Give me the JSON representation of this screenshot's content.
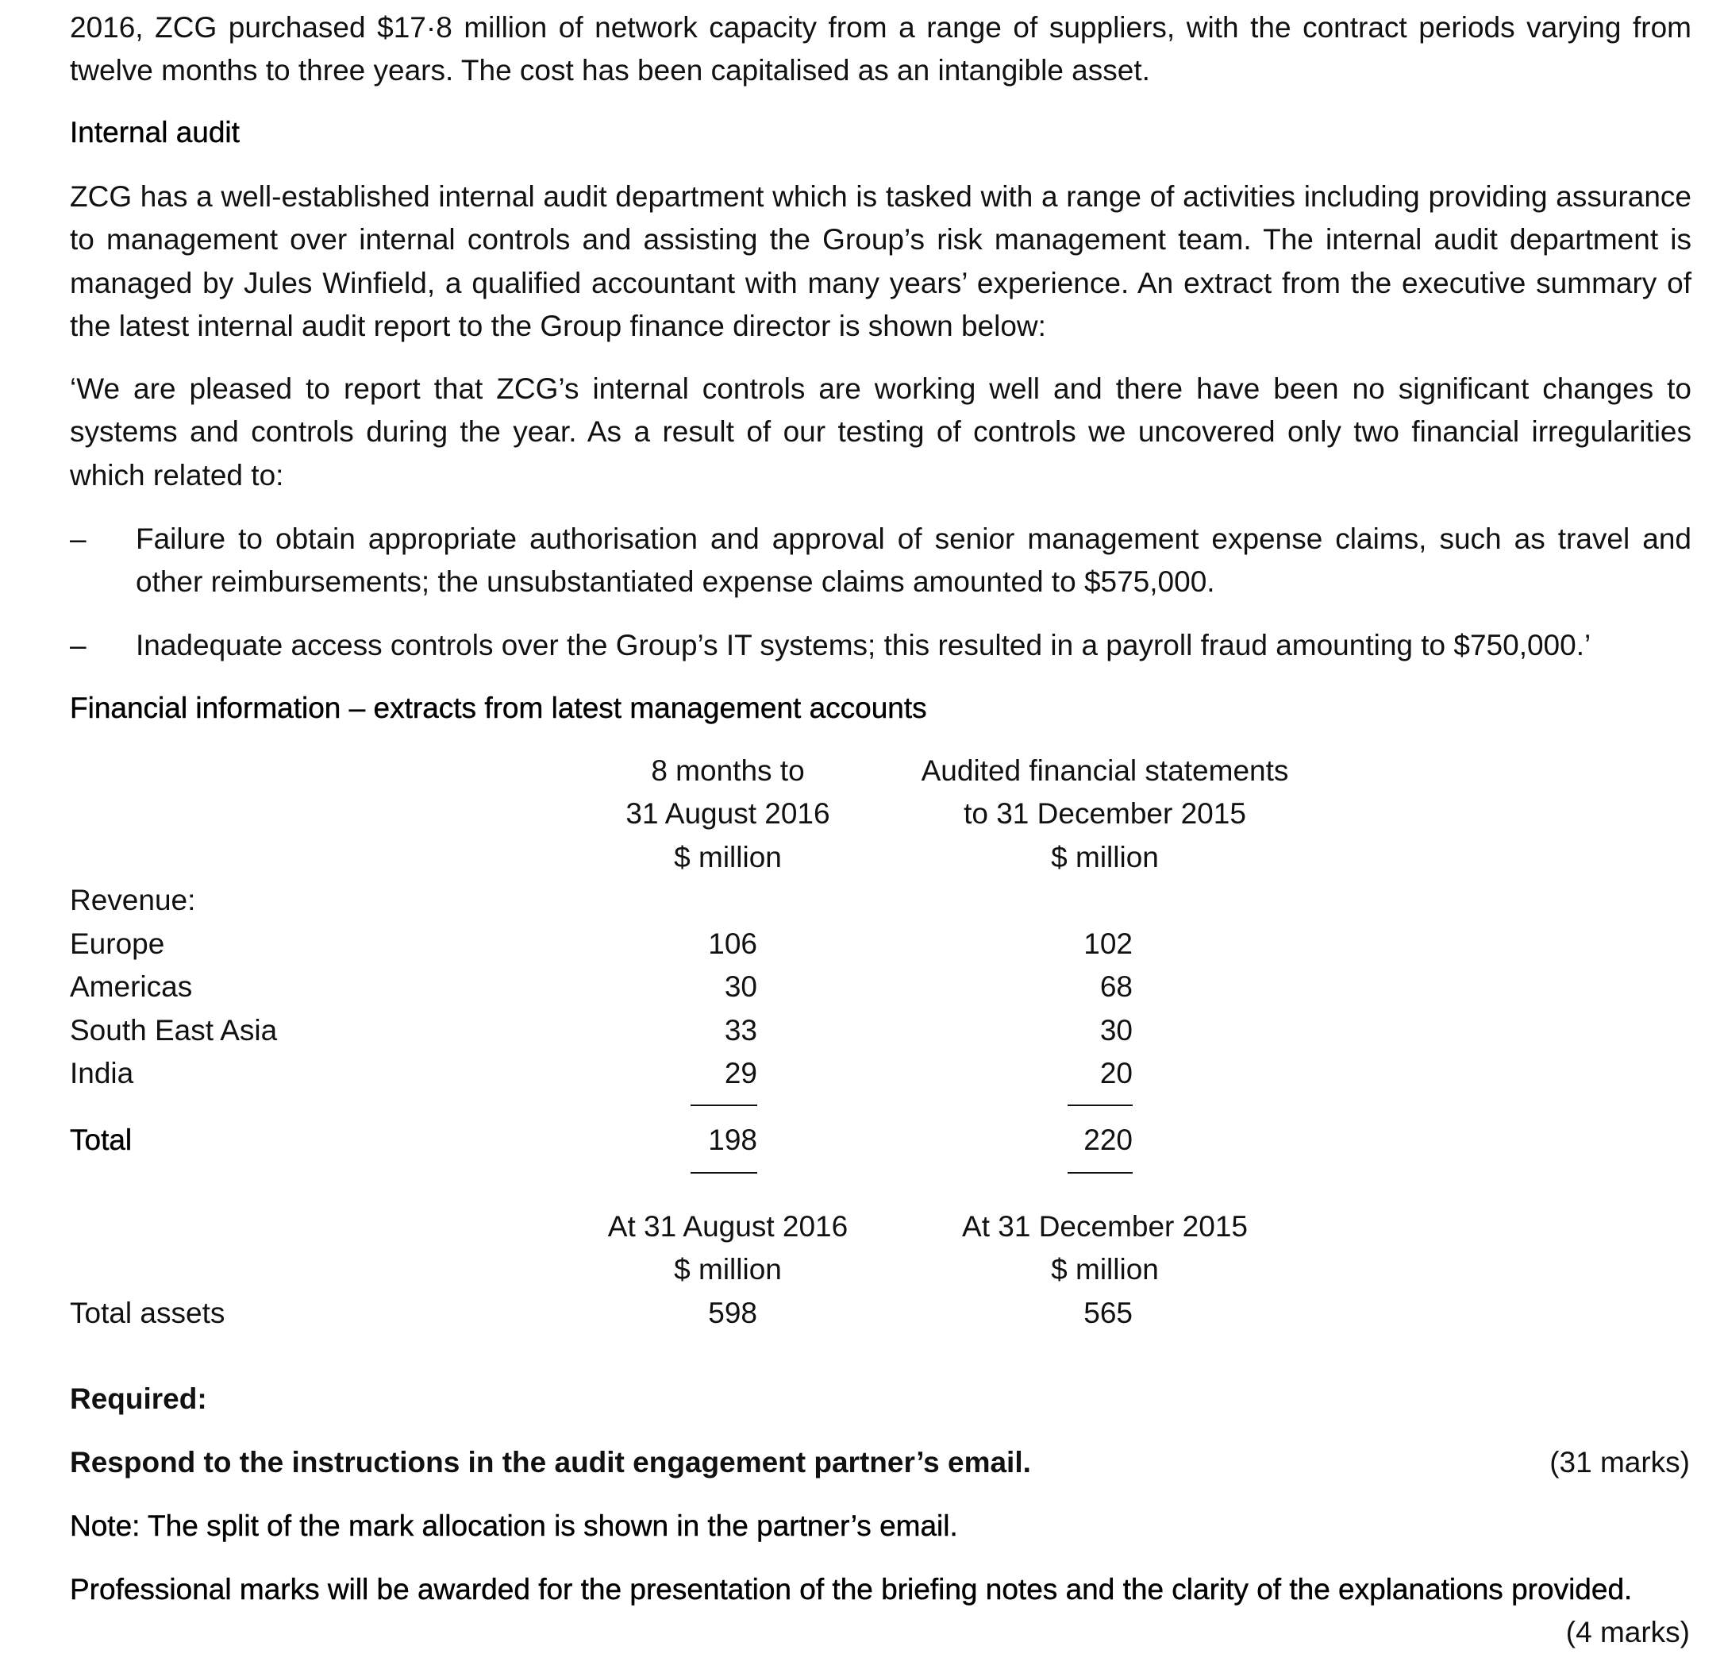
{
  "intro": {
    "paragraph": "2016, ZCG purchased $17·8 million of network capacity from a range of suppliers, with the contract periods varying from twelve months to three years. The cost has been capitalised as an intangible asset."
  },
  "internal_audit": {
    "heading": "Internal audit",
    "paragraph": "ZCG has a well-established internal audit department which is tasked with a range of activities including providing assurance to management over internal controls and assisting the Group’s risk management team. The internal audit department is managed by Jules Winfield, a qualified accountant with many years’ experience. An extract from the executive summary of the latest internal audit report to the Group finance director is shown below:",
    "quote": "‘We are pleased to report that ZCG’s internal controls are working well and there have been no significant changes to systems and controls during the year. As a result of our testing of controls we uncovered only two financial irregularities which related to:",
    "bullets": [
      {
        "marker": "–",
        "text": "Failure to obtain appropriate authorisation and approval of senior management expense claims, such as travel and other reimbursements; the unsubstantiated expense claims amounted to $575,000."
      },
      {
        "marker": "–",
        "text": "Inadequate access controls over the Group’s IT systems; this resulted in a payroll fraud amounting to $750,000.’"
      }
    ]
  },
  "financial": {
    "heading": "Financial information – extracts from latest management accounts",
    "revenue_table": {
      "col1_header": [
        "8 months to",
        "31 August 2016",
        "$ million"
      ],
      "col2_header": [
        "Audited financial statements",
        "to 31 December 2015",
        "$ million"
      ],
      "section_label": "Revenue:",
      "rows": [
        {
          "label": "Europe",
          "v1": "106",
          "v2": "102"
        },
        {
          "label": "Americas",
          "v1": "30",
          "v2": "68"
        },
        {
          "label": "South East Asia",
          "v1": "33",
          "v2": "30"
        },
        {
          "label": "India",
          "v1": "29",
          "v2": "20"
        }
      ],
      "total": {
        "label": "Total",
        "v1": "198",
        "v2": "220"
      }
    },
    "assets_table": {
      "col1_header": [
        "At 31 August 2016",
        "$ million"
      ],
      "col2_header": [
        "At 31 December 2015",
        "$ million"
      ],
      "row": {
        "label": "Total assets",
        "v1": "598",
        "v2": "565"
      }
    }
  },
  "required": {
    "label": "Required:",
    "instruction": "Respond to the instructions in the audit engagement partner’s email.",
    "instruction_marks": "(31 marks)",
    "note": "Note: The split of the mark allocation is shown in the partner’s email.",
    "professional": "Professional marks will be awarded for the presentation of the briefing notes and the clarity of the explanations provided.",
    "professional_marks": "(4 marks)"
  }
}
